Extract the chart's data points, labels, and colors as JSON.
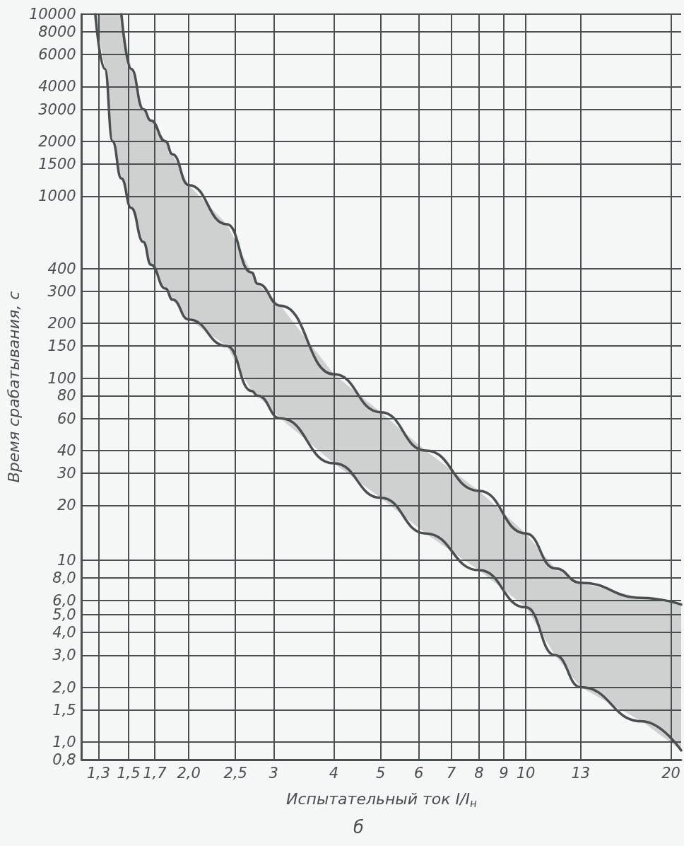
{
  "chart_data": {
    "type": "line",
    "xlabel": "Испытательный ток I/I$_{н}$",
    "ylabel": "Время срабатывания, с",
    "annotations": [
      "б"
    ],
    "log": "xy",
    "grid": true,
    "marker": "none",
    "line_style": "solid",
    "xlim": [
      1.2,
      21
    ],
    "ylim": [
      0.8,
      10000
    ],
    "xticks": [
      {
        "value": 1.3,
        "label": "1,3"
      },
      {
        "value": 1.5,
        "label": "1,5"
      },
      {
        "value": 1.7,
        "label": "1,7"
      },
      {
        "value": 2.0,
        "label": "2,0"
      },
      {
        "value": 2.5,
        "label": "2,5"
      },
      3,
      4,
      5,
      6,
      7,
      8,
      9,
      10,
      13,
      20
    ],
    "yticks": [
      {
        "value": 0.8,
        "label": "0,8"
      },
      {
        "value": 1.0,
        "label": "1,0"
      },
      {
        "value": 1.5,
        "label": "1,5"
      },
      {
        "value": 2.0,
        "label": "2,0"
      },
      {
        "value": 3.0,
        "label": "3,0"
      },
      {
        "value": 4.0,
        "label": "4,0"
      },
      {
        "value": 5.0,
        "label": "5,0"
      },
      {
        "value": 6.0,
        "label": "6,0"
      },
      {
        "value": 8.0,
        "label": "8,0"
      },
      10,
      20,
      30,
      40,
      60,
      80,
      100,
      150,
      200,
      300,
      400,
      1000,
      1500,
      2000,
      3000,
      4000,
      6000,
      8000,
      10000
    ],
    "x": [
      1.28,
      1.34,
      1.39,
      1.45,
      1.52,
      1.61,
      1.67,
      1.79,
      1.85,
      2.0,
      2.4,
      2.7,
      2.78,
      3.1,
      4,
      5,
      6.2,
      8,
      10,
      11.5,
      13,
      17.4,
      21
    ],
    "series": [
      {
        "color": "#4a4f4f",
        "values": [
          null,
          null,
          null,
          10000,
          5000,
          3000,
          2600,
          2000,
          1700,
          1150,
          700,
          380,
          330,
          250,
          105,
          65,
          40,
          24,
          14,
          9,
          7.5,
          6.2,
          5.7
        ],
        "upper": [
          10000,
          10000,
          10000,
          10000,
          5000,
          3000,
          2600,
          2000,
          1700,
          1150,
          700,
          380,
          330,
          250,
          105,
          65,
          40,
          24,
          14,
          9,
          7.5,
          6.2,
          5.7
        ],
        "lower": [
          10000,
          5000,
          2000,
          1250,
          860,
          560,
          420,
          310,
          270,
          210,
          150,
          85,
          80,
          60,
          34,
          22,
          14,
          8.8,
          5.5,
          3,
          2.0,
          1.3,
          0.9
        ]
      },
      {
        "color": "#4a4f4f",
        "values": [
          10000,
          5000,
          2000,
          1250,
          860,
          560,
          420,
          310,
          270,
          210,
          150,
          85,
          80,
          60,
          34,
          22,
          14,
          8.8,
          5.5,
          3,
          2.0,
          1.3,
          0.9
        ]
      }
    ]
  }
}
